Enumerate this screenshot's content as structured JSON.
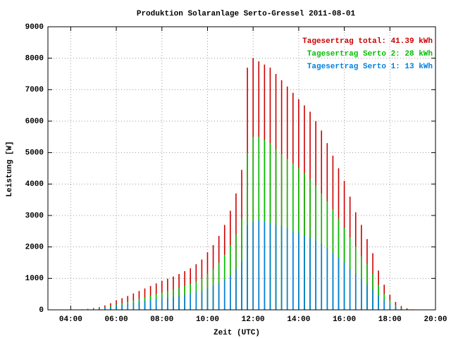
{
  "chart_data": {
    "type": "impulse",
    "title": "Produktion Solaranlage Serto-Gressel 2011-08-01",
    "x_label": "Zeit (UTC)",
    "y_label": "Leistung [W]",
    "x": [
      "04:30",
      "04:45",
      "05:00",
      "05:15",
      "05:30",
      "05:45",
      "06:00",
      "06:15",
      "06:30",
      "06:45",
      "07:00",
      "07:15",
      "07:30",
      "07:45",
      "08:00",
      "08:15",
      "08:30",
      "08:45",
      "09:00",
      "09:15",
      "09:30",
      "09:45",
      "10:00",
      "10:15",
      "10:30",
      "10:45",
      "11:00",
      "11:15",
      "11:30",
      "11:45",
      "12:00",
      "12:15",
      "12:30",
      "12:45",
      "13:00",
      "13:15",
      "13:30",
      "13:45",
      "14:00",
      "14:15",
      "14:30",
      "14:45",
      "15:00",
      "15:15",
      "15:30",
      "15:45",
      "16:00",
      "16:15",
      "16:30",
      "16:45",
      "17:00",
      "17:15",
      "17:30",
      "17:45",
      "18:00",
      "18:15",
      "18:30",
      "18:45",
      "19:00"
    ],
    "series": [
      {
        "name": "Tagesertrag total: 41.39 kWh",
        "color": "#cc0000",
        "values": [
          15,
          30,
          55,
          85,
          140,
          210,
          300,
          370,
          440,
          520,
          600,
          680,
          760,
          840,
          920,
          990,
          1060,
          1140,
          1230,
          1320,
          1450,
          1600,
          1830,
          2060,
          2350,
          2700,
          3150,
          3700,
          4450,
          7700,
          8000,
          7900,
          7800,
          7700,
          7500,
          7300,
          7100,
          6900,
          6700,
          6500,
          6300,
          6000,
          5700,
          5300,
          4900,
          4500,
          4100,
          3600,
          3100,
          2700,
          2250,
          1800,
          1250,
          800,
          480,
          250,
          120,
          50,
          15
        ]
      },
      {
        "name": "Tagesertrag Serto 2: 28 kWh",
        "color": "#00c000",
        "values": [
          10,
          20,
          35,
          50,
          80,
          120,
          170,
          210,
          250,
          300,
          350,
          400,
          450,
          500,
          550,
          600,
          650,
          700,
          760,
          820,
          900,
          1000,
          1150,
          1300,
          1500,
          1750,
          2050,
          2400,
          2900,
          5000,
          5500,
          5500,
          5400,
          5300,
          5100,
          4950,
          4800,
          4650,
          4500,
          4350,
          4150,
          3950,
          3700,
          3450,
          3200,
          2900,
          2600,
          2300,
          2000,
          1700,
          1450,
          1150,
          800,
          500,
          300,
          150,
          70,
          30,
          10
        ]
      },
      {
        "name": "Tagesertrag Serto 1: 13 kWh",
        "color": "#0080e0",
        "values": [
          5,
          10,
          20,
          35,
          60,
          90,
          130,
          160,
          190,
          220,
          250,
          280,
          310,
          340,
          370,
          390,
          410,
          440,
          470,
          500,
          550,
          600,
          680,
          760,
          850,
          950,
          1100,
          1300,
          1550,
          2700,
          2800,
          2850,
          2800,
          2750,
          2700,
          2650,
          2600,
          2500,
          2450,
          2350,
          2300,
          2200,
          2100,
          1950,
          1800,
          1650,
          1500,
          1300,
          1150,
          1000,
          800,
          650,
          450,
          300,
          180,
          100,
          50,
          20,
          5
        ]
      }
    ],
    "xlim": [
      "03:00",
      "20:00"
    ],
    "xticks": [
      "04:00",
      "06:00",
      "08:00",
      "10:00",
      "12:00",
      "14:00",
      "16:00",
      "18:00",
      "20:00"
    ],
    "ylim": [
      0,
      9000
    ],
    "yticks": [
      0,
      1000,
      2000,
      3000,
      4000,
      5000,
      6000,
      7000,
      8000,
      9000
    ],
    "grid": true,
    "legend": "top-right"
  }
}
